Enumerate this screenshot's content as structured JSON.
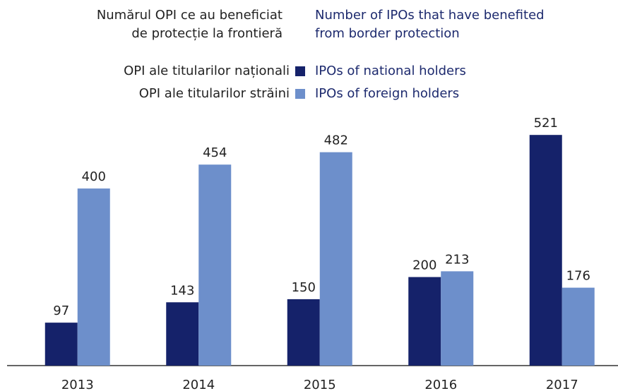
{
  "chart_data": {
    "type": "bar",
    "title": [
      "Numărul OPI ce au beneficiat",
      "de protecție la frontieră"
    ],
    "title_en": [
      "Number of IPOs that have benefited",
      "from border protection"
    ],
    "categories": [
      "2013",
      "2014",
      "2015",
      "2016",
      "2017"
    ],
    "series": [
      {
        "name": "OPI ale titularilor naționali",
        "name_en": "IPOs of national holders",
        "color": "#15226a",
        "values": [
          97,
          143,
          150,
          200,
          521
        ]
      },
      {
        "name": "OPI ale titularilor străini",
        "name_en": "IPOs of foreign holders",
        "color": "#6d8fcb",
        "values": [
          400,
          454,
          482,
          213,
          176
        ]
      }
    ],
    "ylim": [
      0,
      550
    ]
  }
}
